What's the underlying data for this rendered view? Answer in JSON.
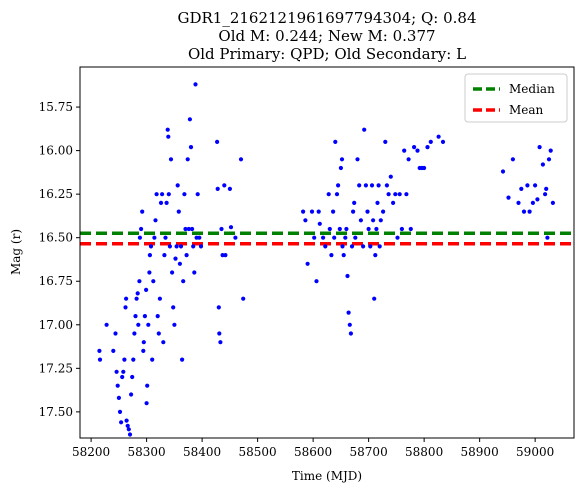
{
  "chart_data": {
    "type": "scatter",
    "title_lines": [
      "GDR1_2162121961697794304; Q: 0.84",
      "Old M: 0.244; New M: 0.377",
      "Old Primary: QPD; Old Secondary: L"
    ],
    "xlabel": "Time (MJD)",
    "ylabel": "Mag (r)",
    "xlim": [
      58180,
      59070
    ],
    "ylim": [
      17.65,
      15.52
    ],
    "y_inverted": true,
    "xticks": [
      58200,
      58300,
      58400,
      58500,
      58600,
      58700,
      58800,
      58900,
      59000
    ],
    "xtick_labels": [
      "58200",
      "58300",
      "58400",
      "58500",
      "58600",
      "58700",
      "58800",
      "58900",
      "59000"
    ],
    "yticks": [
      15.75,
      16.0,
      16.25,
      16.5,
      16.75,
      17.0,
      17.25,
      17.5
    ],
    "ytick_labels": [
      "15.75",
      "16.00",
      "16.25",
      "16.50",
      "16.75",
      "17.00",
      "17.25",
      "17.50"
    ],
    "grid": false,
    "legend_position": "top-right",
    "colors": {
      "points": "#0000ff",
      "median": "#008000",
      "mean": "#ff0000"
    },
    "reference_lines": [
      {
        "name": "Median",
        "y": 16.475,
        "color": "#008000",
        "style": "dashed"
      },
      {
        "name": "Mean",
        "y": 16.535,
        "color": "#ff0000",
        "style": "dashed"
      }
    ],
    "series": [
      {
        "marker": "dot",
        "points": [
          [
            58215,
            17.15
          ],
          [
            58216,
            17.2
          ],
          [
            58228,
            17.0
          ],
          [
            58240,
            17.15
          ],
          [
            58244,
            17.05
          ],
          [
            58246,
            17.27
          ],
          [
            58248,
            17.35
          ],
          [
            58250,
            17.42
          ],
          [
            58252,
            17.5
          ],
          [
            58254,
            17.56
          ],
          [
            58256,
            17.3
          ],
          [
            58258,
            17.27
          ],
          [
            58260,
            17.2
          ],
          [
            58262,
            16.9
          ],
          [
            58263,
            16.85
          ],
          [
            58264,
            17.55
          ],
          [
            58266,
            17.58
          ],
          [
            58268,
            17.6
          ],
          [
            58270,
            17.63
          ],
          [
            58272,
            17.4
          ],
          [
            58274,
            17.3
          ],
          [
            58276,
            17.2
          ],
          [
            58278,
            17.05
          ],
          [
            58280,
            16.95
          ],
          [
            58282,
            16.85
          ],
          [
            58284,
            16.82
          ],
          [
            58285,
            17.0
          ],
          [
            58287,
            16.75
          ],
          [
            58288,
            16.5
          ],
          [
            58290,
            16.45
          ],
          [
            58292,
            16.35
          ],
          [
            58294,
            17.15
          ],
          [
            58295,
            17.1
          ],
          [
            58297,
            16.95
          ],
          [
            58299,
            16.8
          ],
          [
            58300,
            17.45
          ],
          [
            58301,
            17.35
          ],
          [
            58303,
            17.0
          ],
          [
            58305,
            16.7
          ],
          [
            58306,
            16.6
          ],
          [
            58308,
            16.55
          ],
          [
            58310,
            17.2
          ],
          [
            58312,
            16.75
          ],
          [
            58314,
            16.5
          ],
          [
            58316,
            16.4
          ],
          [
            58318,
            16.25
          ],
          [
            58320,
            16.95
          ],
          [
            58322,
            17.05
          ],
          [
            58324,
            16.85
          ],
          [
            58326,
            16.3
          ],
          [
            58328,
            16.25
          ],
          [
            58330,
            17.1
          ],
          [
            58332,
            16.6
          ],
          [
            58334,
            16.5
          ],
          [
            58336,
            16.3
          ],
          [
            58338,
            15.88
          ],
          [
            58339,
            15.92
          ],
          [
            58340,
            16.25
          ],
          [
            58342,
            16.55
          ],
          [
            58344,
            16.05
          ],
          [
            58346,
            16.7
          ],
          [
            58348,
            16.9
          ],
          [
            58350,
            17.0
          ],
          [
            58352,
            16.62
          ],
          [
            58354,
            16.55
          ],
          [
            58356,
            16.2
          ],
          [
            58358,
            16.35
          ],
          [
            58360,
            16.65
          ],
          [
            58362,
            16.55
          ],
          [
            58364,
            17.2
          ],
          [
            58366,
            16.75
          ],
          [
            58368,
            16.25
          ],
          [
            58370,
            16.45
          ],
          [
            58372,
            16.6
          ],
          [
            58374,
            16.05
          ],
          [
            58376,
            16.45
          ],
          [
            58378,
            15.82
          ],
          [
            58380,
            15.98
          ],
          [
            58382,
            16.45
          ],
          [
            58384,
            16.55
          ],
          [
            58386,
            16.7
          ],
          [
            58388,
            15.62
          ],
          [
            58390,
            16.5
          ],
          [
            58392,
            16.25
          ],
          [
            58395,
            16.5
          ],
          [
            58398,
            16.55
          ],
          [
            58427,
            15.95
          ],
          [
            58428,
            16.22
          ],
          [
            58430,
            16.9
          ],
          [
            58431,
            17.05
          ],
          [
            58433,
            17.1
          ],
          [
            58435,
            16.45
          ],
          [
            58437,
            16.6
          ],
          [
            58440,
            16.2
          ],
          [
            58442,
            16.6
          ],
          [
            58450,
            16.22
          ],
          [
            58452,
            16.44
          ],
          [
            58460,
            16.5
          ],
          [
            58470,
            16.05
          ],
          [
            58474,
            16.85
          ],
          [
            58582,
            16.35
          ],
          [
            58586,
            16.4
          ],
          [
            58590,
            16.65
          ],
          [
            58598,
            16.35
          ],
          [
            58602,
            16.5
          ],
          [
            58606,
            16.75
          ],
          [
            58610,
            16.35
          ],
          [
            58612,
            16.42
          ],
          [
            58618,
            16.5
          ],
          [
            58622,
            16.55
          ],
          [
            58628,
            16.25
          ],
          [
            58630,
            16.45
          ],
          [
            58633,
            16.6
          ],
          [
            58636,
            16.35
          ],
          [
            58638,
            16.5
          ],
          [
            58640,
            15.95
          ],
          [
            58643,
            16.25
          ],
          [
            58645,
            16.2
          ],
          [
            58648,
            16.45
          ],
          [
            58650,
            16.1
          ],
          [
            58652,
            16.05
          ],
          [
            58653,
            16.55
          ],
          [
            58655,
            16.6
          ],
          [
            58658,
            16.5
          ],
          [
            58660,
            16.45
          ],
          [
            58662,
            16.72
          ],
          [
            58664,
            16.93
          ],
          [
            58666,
            17.0
          ],
          [
            58668,
            17.05
          ],
          [
            58670,
            16.55
          ],
          [
            58672,
            16.35
          ],
          [
            58674,
            16.3
          ],
          [
            58676,
            16.5
          ],
          [
            58680,
            16.05
          ],
          [
            58683,
            16.2
          ],
          [
            58686,
            16.4
          ],
          [
            58690,
            16.55
          ],
          [
            58692,
            15.88
          ],
          [
            58695,
            16.2
          ],
          [
            58698,
            16.35
          ],
          [
            58700,
            16.45
          ],
          [
            58703,
            16.55
          ],
          [
            58706,
            16.2
          ],
          [
            58708,
            16.4
          ],
          [
            58710,
            16.85
          ],
          [
            58712,
            16.6
          ],
          [
            58714,
            16.45
          ],
          [
            58716,
            16.3
          ],
          [
            58718,
            16.2
          ],
          [
            58720,
            16.55
          ],
          [
            58722,
            16.4
          ],
          [
            58726,
            16.35
          ],
          [
            58730,
            15.95
          ],
          [
            58733,
            16.2
          ],
          [
            58736,
            16.25
          ],
          [
            58740,
            16.15
          ],
          [
            58744,
            16.3
          ],
          [
            58748,
            16.25
          ],
          [
            58752,
            16.5
          ],
          [
            58756,
            16.25
          ],
          [
            58760,
            16.45
          ],
          [
            58764,
            16.0
          ],
          [
            58768,
            16.25
          ],
          [
            58772,
            16.05
          ],
          [
            58776,
            16.45
          ],
          [
            58782,
            15.98
          ],
          [
            58788,
            16.0
          ],
          [
            58792,
            16.1
          ],
          [
            58796,
            16.1
          ],
          [
            58800,
            16.1
          ],
          [
            58806,
            15.98
          ],
          [
            58812,
            15.95
          ],
          [
            58826,
            15.92
          ],
          [
            58834,
            15.95
          ],
          [
            58942,
            16.12
          ],
          [
            58952,
            16.27
          ],
          [
            58960,
            16.05
          ],
          [
            58970,
            16.3
          ],
          [
            58975,
            16.22
          ],
          [
            58980,
            16.35
          ],
          [
            58986,
            16.2
          ],
          [
            58990,
            16.35
          ],
          [
            58996,
            16.3
          ],
          [
            59000,
            16.2
          ],
          [
            59004,
            16.28
          ],
          [
            59008,
            15.98
          ],
          [
            59014,
            16.08
          ],
          [
            59018,
            16.25
          ],
          [
            59020,
            16.22
          ],
          [
            59022,
            16.5
          ],
          [
            59025,
            16.05
          ],
          [
            59028,
            16.0
          ],
          [
            59032,
            16.3
          ]
        ]
      }
    ]
  }
}
